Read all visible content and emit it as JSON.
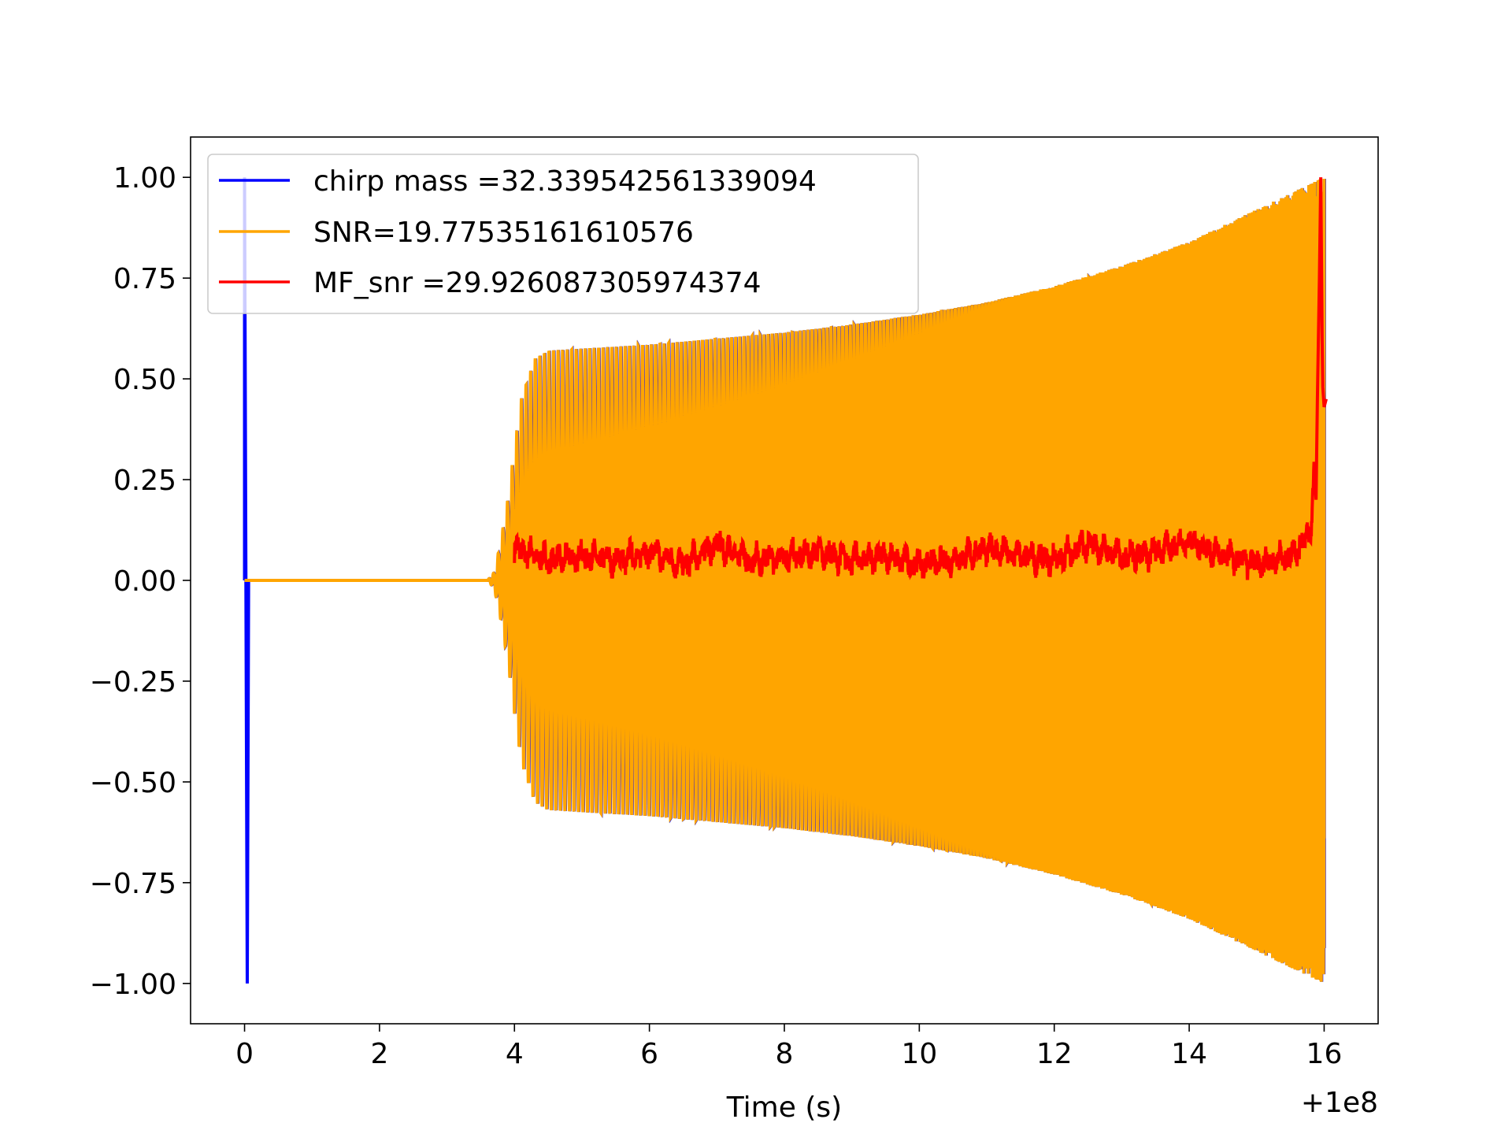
{
  "chart_data": {
    "type": "line",
    "title": "",
    "xlabel": "Time (s)",
    "ylabel": "",
    "x_offset_label": "+1e8",
    "xlim": [
      -0.8,
      16.8
    ],
    "ylim": [
      -1.1,
      1.1
    ],
    "x_ticks": [
      0,
      2,
      4,
      6,
      8,
      10,
      12,
      14,
      16
    ],
    "x_tick_labels": [
      "0",
      "2",
      "4",
      "6",
      "8",
      "10",
      "12",
      "14",
      "16"
    ],
    "y_ticks": [
      1.0,
      0.75,
      0.5,
      0.25,
      0.0,
      -0.25,
      -0.5,
      -0.75,
      -1.0
    ],
    "y_tick_labels": [
      "1.00",
      "0.75",
      "0.50",
      "0.25",
      "0.00",
      "−0.25",
      "−0.50",
      "−0.75",
      "−1.00"
    ],
    "grid": false,
    "legend_position": "top-left",
    "series": [
      {
        "name": "chirp mass =32.339542561339094",
        "color": "#0000ff",
        "description_points": [
          [
            0.0,
            1.0
          ],
          [
            0.03,
            -1.0
          ],
          [
            0.05,
            0.0
          ],
          [
            3.6,
            0.0
          ],
          [
            3.7,
            0.02
          ],
          [
            4.0,
            0.4
          ],
          [
            4.5,
            0.57
          ],
          [
            6.0,
            0.58
          ],
          [
            8.0,
            0.62
          ],
          [
            10.0,
            0.67
          ],
          [
            12.0,
            0.74
          ],
          [
            14.0,
            0.84
          ],
          [
            15.5,
            0.95
          ],
          [
            16.0,
            1.0
          ],
          [
            16.0,
            -0.64
          ]
        ]
      },
      {
        "name": "SNR=19.77535161610576",
        "color": "#ffa500",
        "envelope": [
          [
            3.6,
            0.0
          ],
          [
            3.7,
            0.02
          ],
          [
            3.8,
            0.1
          ],
          [
            3.9,
            0.2
          ],
          [
            4.0,
            0.33
          ],
          [
            4.1,
            0.45
          ],
          [
            4.3,
            0.55
          ],
          [
            4.5,
            0.57
          ],
          [
            5.0,
            0.575
          ],
          [
            6.0,
            0.585
          ],
          [
            7.0,
            0.6
          ],
          [
            8.0,
            0.615
          ],
          [
            9.0,
            0.635
          ],
          [
            10.0,
            0.66
          ],
          [
            11.0,
            0.69
          ],
          [
            12.0,
            0.73
          ],
          [
            13.0,
            0.78
          ],
          [
            14.0,
            0.84
          ],
          [
            14.5,
            0.88
          ],
          [
            15.0,
            0.92
          ],
          [
            15.5,
            0.96
          ],
          [
            16.0,
            1.0
          ]
        ],
        "end_value": -0.64
      },
      {
        "name": "MF_snr =29.926087305974374",
        "color": "#ff0000",
        "values_sampled": [
          [
            4.0,
            0.08
          ],
          [
            4.5,
            0.05
          ],
          [
            5.0,
            0.06
          ],
          [
            5.5,
            0.05
          ],
          [
            6.0,
            0.07
          ],
          [
            6.5,
            0.04
          ],
          [
            7.0,
            0.09
          ],
          [
            7.5,
            0.05
          ],
          [
            8.0,
            0.06
          ],
          [
            8.5,
            0.07
          ],
          [
            9.0,
            0.05
          ],
          [
            9.5,
            0.06
          ],
          [
            10.0,
            0.04
          ],
          [
            10.5,
            0.05
          ],
          [
            11.0,
            0.08
          ],
          [
            11.5,
            0.06
          ],
          [
            12.0,
            0.05
          ],
          [
            12.5,
            0.09
          ],
          [
            13.0,
            0.06
          ],
          [
            13.5,
            0.07
          ],
          [
            14.0,
            0.1
          ],
          [
            14.5,
            0.06
          ],
          [
            15.0,
            0.04
          ],
          [
            15.5,
            0.06
          ],
          [
            15.8,
            0.12
          ],
          [
            15.9,
            0.45
          ],
          [
            15.95,
            1.0
          ],
          [
            16.0,
            0.43
          ]
        ]
      }
    ]
  }
}
